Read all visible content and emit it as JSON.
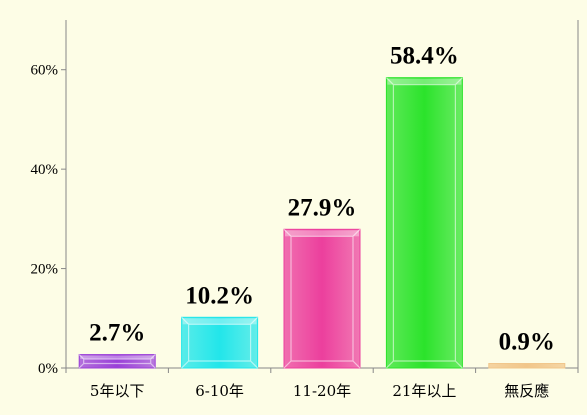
{
  "chart_data": {
    "type": "bar",
    "categories": [
      "5年以下",
      "6-10年",
      "11-20年",
      "21年以上",
      "無反應"
    ],
    "values": [
      2.7,
      10.2,
      27.9,
      58.4,
      0.9
    ],
    "data_labels": [
      "2.7%",
      "10.2%",
      "27.9%",
      "58.4%",
      "0.9%"
    ],
    "yticks": [
      0,
      20,
      40,
      60
    ],
    "ytick_labels": [
      "0%",
      "20%",
      "40%",
      "60%"
    ],
    "ylim": [
      0,
      70
    ],
    "grid": false,
    "colors": [
      "#9a3fd8",
      "#22e6ea",
      "#ec3f9d",
      "#2be32b",
      "#f1c68a"
    ],
    "background": "#fdfde6"
  }
}
